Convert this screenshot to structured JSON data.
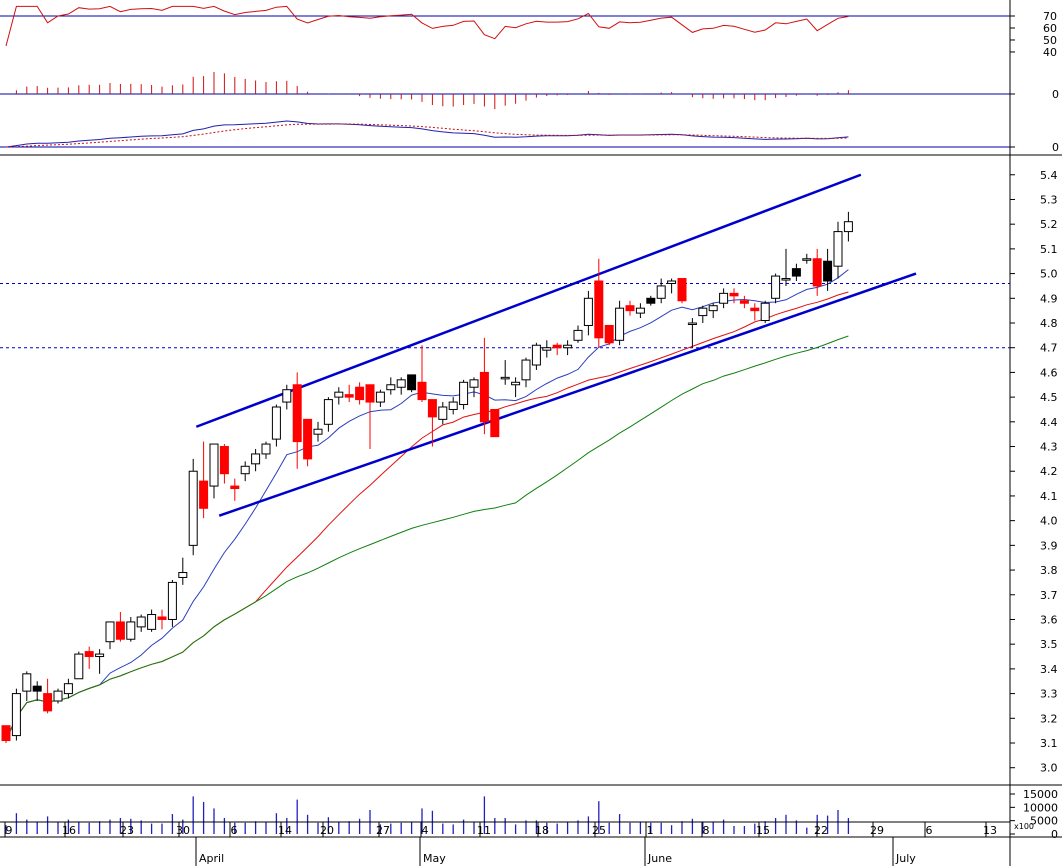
{
  "chart_data": {
    "type": "candlestick",
    "colors": {
      "up_candle": "#ffffff",
      "down_candle": "#ff0000",
      "black_candle": "#000000",
      "channel": "#0000cc",
      "ma_short": "#2a3fbf",
      "ma_mid": "#e01010",
      "ma_long": "#108010",
      "rsi": "#d01010",
      "macd_hist": "#d01010",
      "macd": "#2020b0",
      "macd_signal": "#c01010",
      "volume": "#2020c0",
      "panel_line": "#0000aa"
    },
    "price_axis": {
      "ylim": [
        2.93,
        5.48
      ],
      "ticks": [
        "5.4",
        "5.3",
        "5.2",
        "5.1",
        "5.0",
        "4.9",
        "4.8",
        "4.7",
        "4.6",
        "4.5",
        "4.4",
        "4.3",
        "4.2",
        "4.1",
        "4.0",
        "3.9",
        "3.8",
        "3.7",
        "3.6",
        "3.5",
        "3.4",
        "3.3",
        "3.2",
        "3.1",
        "3.0"
      ],
      "dashed_levels": [
        4.96,
        4.7
      ]
    },
    "rsi_axis": {
      "ticks": [
        "70",
        "60",
        "50",
        "40"
      ],
      "level": 70
    },
    "macd_hist_axis": {
      "ticks": [
        "0"
      ]
    },
    "macd_axis": {
      "ticks": [
        "0"
      ]
    },
    "volume_axis": {
      "ticks": [
        "15000",
        "10000",
        "5000",
        "0"
      ],
      "unit": "x100"
    },
    "x_labels": [
      "9",
      "16",
      "23",
      "30",
      "6",
      "14",
      "20",
      "27",
      "4",
      "11",
      "18",
      "25",
      "1",
      "8",
      "15",
      "22",
      "29",
      "6",
      "13"
    ],
    "month_labels": [
      "April",
      "May",
      "June",
      "July"
    ],
    "candles": [
      {
        "d": "Mar 09",
        "o": 3.17,
        "h": 3.17,
        "l": 3.1,
        "c": 3.11
      },
      {
        "d": "Mar 10",
        "o": 3.13,
        "h": 3.32,
        "l": 3.11,
        "c": 3.3
      },
      {
        "d": "Mar 11",
        "o": 3.31,
        "h": 3.39,
        "l": 3.27,
        "c": 3.38
      },
      {
        "d": "Mar 12",
        "o": 3.33,
        "h": 3.35,
        "l": 3.27,
        "c": 3.31
      },
      {
        "d": "Mar 13",
        "o": 3.3,
        "h": 3.36,
        "l": 3.22,
        "c": 3.23
      },
      {
        "d": "Mar 16",
        "o": 3.27,
        "h": 3.32,
        "l": 3.26,
        "c": 3.31
      },
      {
        "d": "Mar 17",
        "o": 3.3,
        "h": 3.36,
        "l": 3.28,
        "c": 3.34
      },
      {
        "d": "Mar 18",
        "o": 3.36,
        "h": 3.47,
        "l": 3.36,
        "c": 3.46
      },
      {
        "d": "Mar 19",
        "o": 3.47,
        "h": 3.49,
        "l": 3.4,
        "c": 3.45
      },
      {
        "d": "Mar 20",
        "o": 3.45,
        "h": 3.48,
        "l": 3.38,
        "c": 3.46
      },
      {
        "d": "Mar 23",
        "o": 3.51,
        "h": 3.59,
        "l": 3.48,
        "c": 3.59
      },
      {
        "d": "Mar 24",
        "o": 3.59,
        "h": 3.63,
        "l": 3.51,
        "c": 3.52
      },
      {
        "d": "Mar 25",
        "o": 3.52,
        "h": 3.61,
        "l": 3.51,
        "c": 3.59
      },
      {
        "d": "Mar 26",
        "o": 3.57,
        "h": 3.62,
        "l": 3.55,
        "c": 3.61
      },
      {
        "d": "Mar 27",
        "o": 3.56,
        "h": 3.64,
        "l": 3.55,
        "c": 3.62
      },
      {
        "d": "Mar 30",
        "o": 3.61,
        "h": 3.64,
        "l": 3.56,
        "c": 3.6
      },
      {
        "d": "Mar 31",
        "o": 3.6,
        "h": 3.76,
        "l": 3.57,
        "c": 3.75
      },
      {
        "d": "Apr 01",
        "o": 3.77,
        "h": 3.85,
        "l": 3.74,
        "c": 3.79
      },
      {
        "d": "Apr 02",
        "o": 3.9,
        "h": 4.25,
        "l": 3.86,
        "c": 4.2
      },
      {
        "d": "Apr 03",
        "o": 4.16,
        "h": 4.32,
        "l": 4.01,
        "c": 4.05
      },
      {
        "d": "Apr 06",
        "o": 4.14,
        "h": 4.31,
        "l": 4.09,
        "c": 4.31
      },
      {
        "d": "Apr 07",
        "o": 4.3,
        "h": 4.31,
        "l": 4.15,
        "c": 4.19
      },
      {
        "d": "Apr 08",
        "o": 4.14,
        "h": 4.17,
        "l": 4.08,
        "c": 4.13
      },
      {
        "d": "Apr 09",
        "o": 4.19,
        "h": 4.24,
        "l": 4.16,
        "c": 4.22
      },
      {
        "d": "Apr 10",
        "o": 4.23,
        "h": 4.29,
        "l": 4.2,
        "c": 4.27
      },
      {
        "d": "Apr 13",
        "o": 4.27,
        "h": 4.32,
        "l": 4.25,
        "c": 4.31
      },
      {
        "d": "Apr 14",
        "o": 4.33,
        "h": 4.47,
        "l": 4.3,
        "c": 4.46
      },
      {
        "d": "Apr 15",
        "o": 4.48,
        "h": 4.55,
        "l": 4.45,
        "c": 4.53
      },
      {
        "d": "Apr 16",
        "o": 4.55,
        "h": 4.6,
        "l": 4.21,
        "c": 4.32
      },
      {
        "d": "Apr 17",
        "o": 4.41,
        "h": 4.41,
        "l": 4.22,
        "c": 4.25
      },
      {
        "d": "Apr 20",
        "o": 4.35,
        "h": 4.4,
        "l": 4.32,
        "c": 4.37
      },
      {
        "d": "Apr 21",
        "o": 4.39,
        "h": 4.5,
        "l": 4.36,
        "c": 4.49
      },
      {
        "d": "Apr 22",
        "o": 4.5,
        "h": 4.54,
        "l": 4.47,
        "c": 4.52
      },
      {
        "d": "Apr 23",
        "o": 4.51,
        "h": 4.55,
        "l": 4.48,
        "c": 4.5
      },
      {
        "d": "Apr 24",
        "o": 4.54,
        "h": 4.56,
        "l": 4.47,
        "c": 4.49
      },
      {
        "d": "Apr 27",
        "o": 4.55,
        "h": 4.55,
        "l": 4.29,
        "c": 4.48
      },
      {
        "d": "Apr 28",
        "o": 4.48,
        "h": 4.53,
        "l": 4.46,
        "c": 4.52
      },
      {
        "d": "Apr 29",
        "o": 4.53,
        "h": 4.58,
        "l": 4.51,
        "c": 4.55
      },
      {
        "d": "Apr 30",
        "o": 4.54,
        "h": 4.58,
        "l": 4.51,
        "c": 4.57
      },
      {
        "d": "May 04",
        "o": 4.53,
        "h": 4.59,
        "l": 4.52,
        "c": 4.59
      },
      {
        "d": "May 05",
        "o": 4.56,
        "h": 4.71,
        "l": 4.48,
        "c": 4.49
      },
      {
        "d": "May 06",
        "o": 4.49,
        "h": 4.49,
        "l": 4.3,
        "c": 4.42
      },
      {
        "d": "May 07",
        "o": 4.41,
        "h": 4.48,
        "l": 4.39,
        "c": 4.46
      },
      {
        "d": "May 08",
        "o": 4.45,
        "h": 4.5,
        "l": 4.43,
        "c": 4.48
      },
      {
        "d": "May 11",
        "o": 4.47,
        "h": 4.57,
        "l": 4.45,
        "c": 4.56
      },
      {
        "d": "May 12",
        "o": 4.54,
        "h": 4.58,
        "l": 4.5,
        "c": 4.57
      },
      {
        "d": "May 13",
        "o": 4.6,
        "h": 4.74,
        "l": 4.35,
        "c": 4.4
      },
      {
        "d": "May 14",
        "o": 4.45,
        "h": 4.45,
        "l": 4.34,
        "c": 4.34
      },
      {
        "d": "May 15",
        "o": 4.58,
        "h": 4.65,
        "l": 4.55,
        "c": 4.58
      },
      {
        "d": "May 18",
        "o": 4.55,
        "h": 4.58,
        "l": 4.5,
        "c": 4.56
      },
      {
        "d": "May 19",
        "o": 4.57,
        "h": 4.66,
        "l": 4.54,
        "c": 4.65
      },
      {
        "d": "May 20",
        "o": 4.63,
        "h": 4.72,
        "l": 4.61,
        "c": 4.71
      },
      {
        "d": "May 21",
        "o": 4.69,
        "h": 4.73,
        "l": 4.66,
        "c": 4.7
      },
      {
        "d": "May 22",
        "o": 4.71,
        "h": 4.72,
        "l": 4.67,
        "c": 4.7
      },
      {
        "d": "May 25",
        "o": 4.7,
        "h": 4.73,
        "l": 4.67,
        "c": 4.71
      },
      {
        "d": "May 26",
        "o": 4.73,
        "h": 4.79,
        "l": 4.72,
        "c": 4.77
      },
      {
        "d": "May 27",
        "o": 4.79,
        "h": 4.93,
        "l": 4.75,
        "c": 4.9
      },
      {
        "d": "May 28",
        "o": 4.97,
        "h": 5.06,
        "l": 4.7,
        "c": 4.74
      },
      {
        "d": "May 29",
        "o": 4.79,
        "h": 4.79,
        "l": 4.71,
        "c": 4.72
      },
      {
        "d": "Jun 01",
        "o": 4.73,
        "h": 4.89,
        "l": 4.71,
        "c": 4.86
      },
      {
        "d": "Jun 02",
        "o": 4.87,
        "h": 4.89,
        "l": 4.83,
        "c": 4.85
      },
      {
        "d": "Jun 03",
        "o": 4.84,
        "h": 4.88,
        "l": 4.82,
        "c": 4.86
      },
      {
        "d": "Jun 04",
        "o": 4.88,
        "h": 4.91,
        "l": 4.87,
        "c": 4.9
      },
      {
        "d": "Jun 05",
        "o": 4.9,
        "h": 4.98,
        "l": 4.88,
        "c": 4.95
      },
      {
        "d": "Jun 08",
        "o": 4.96,
        "h": 4.98,
        "l": 4.92,
        "c": 4.97
      },
      {
        "d": "Jun 09",
        "o": 4.98,
        "h": 4.98,
        "l": 4.88,
        "c": 4.89
      },
      {
        "d": "Jun 10",
        "o": 4.8,
        "h": 4.82,
        "l": 4.7,
        "c": 4.8
      },
      {
        "d": "Jun 11",
        "o": 4.83,
        "h": 4.87,
        "l": 4.8,
        "c": 4.86
      },
      {
        "d": "Jun 12",
        "o": 4.85,
        "h": 4.88,
        "l": 4.82,
        "c": 4.87
      },
      {
        "d": "Jun 15",
        "o": 4.88,
        "h": 4.94,
        "l": 4.86,
        "c": 4.92
      },
      {
        "d": "Jun 16",
        "o": 4.92,
        "h": 4.94,
        "l": 4.88,
        "c": 4.91
      },
      {
        "d": "Jun 17",
        "o": 4.89,
        "h": 4.91,
        "l": 4.86,
        "c": 4.88
      },
      {
        "d": "Jun 18",
        "o": 4.86,
        "h": 4.88,
        "l": 4.81,
        "c": 4.85
      },
      {
        "d": "Jun 19",
        "o": 4.81,
        "h": 4.89,
        "l": 4.8,
        "c": 4.88
      },
      {
        "d": "Jun 22",
        "o": 4.9,
        "h": 5.0,
        "l": 4.88,
        "c": 4.99
      },
      {
        "d": "Jun 23",
        "o": 4.98,
        "h": 5.1,
        "l": 4.95,
        "c": 4.98
      },
      {
        "d": "Jun 24",
        "o": 4.99,
        "h": 5.04,
        "l": 4.97,
        "c": 5.02
      },
      {
        "d": "Jun 25",
        "o": 5.06,
        "h": 5.08,
        "l": 5.04,
        "c": 5.06
      },
      {
        "d": "Jun 26",
        "o": 5.06,
        "h": 5.1,
        "l": 4.91,
        "c": 4.95
      },
      {
        "d": "Jun 29",
        "o": 4.97,
        "h": 5.1,
        "l": 4.93,
        "c": 5.05
      },
      {
        "d": "Jun 30",
        "o": 5.03,
        "h": 5.21,
        "l": 4.98,
        "c": 5.17
      },
      {
        "d": "Jul 01",
        "o": 5.17,
        "h": 5.25,
        "l": 5.13,
        "c": 5.21
      }
    ]
  }
}
